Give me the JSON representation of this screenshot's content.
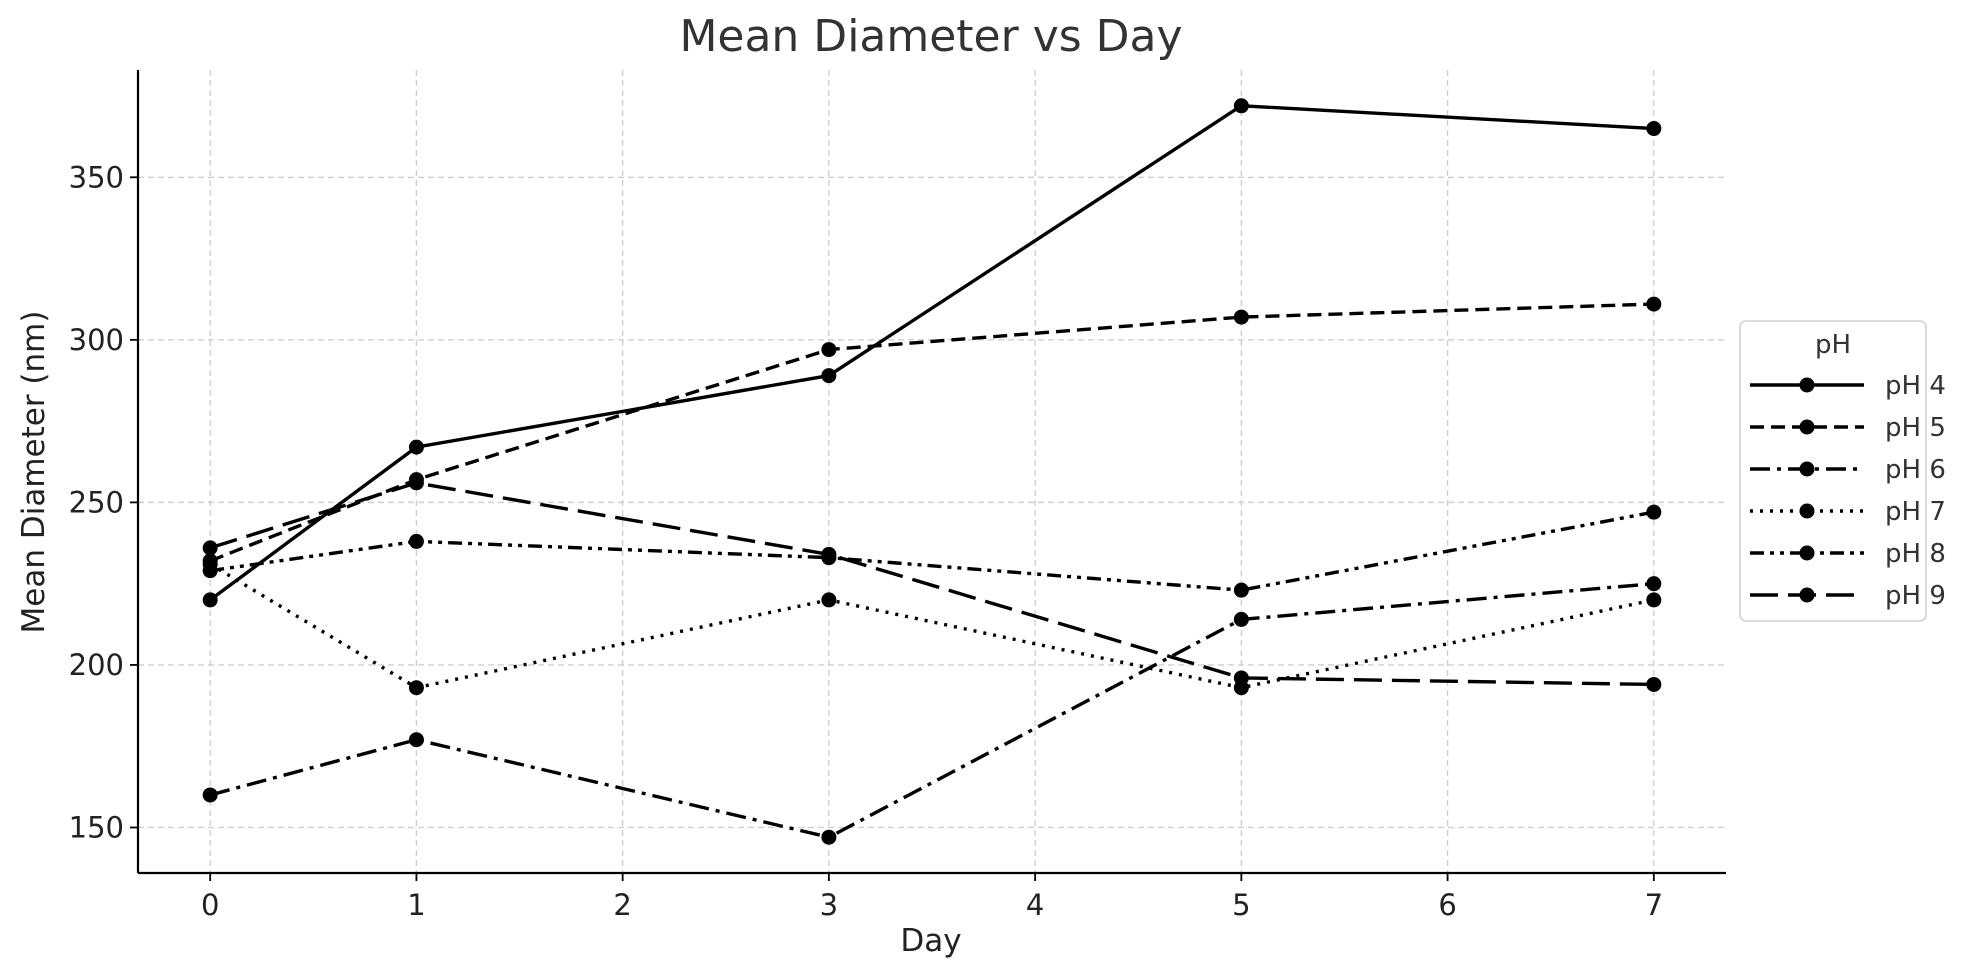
{
  "chart_data": {
    "type": "line",
    "title": "Mean Diameter vs Day",
    "xlabel": "Day",
    "ylabel": "Mean Diameter (nm)",
    "xlim": [
      -0.35,
      7.35
    ],
    "ylim": [
      136,
      383
    ],
    "xticks": [
      0,
      1,
      2,
      3,
      4,
      5,
      6,
      7
    ],
    "yticks": [
      150,
      200,
      250,
      300,
      350
    ],
    "grid": true,
    "x": [
      0,
      1,
      3,
      5,
      7
    ],
    "legend": {
      "title": "pH",
      "position": "center-right outside"
    },
    "series": [
      {
        "name": "pH 4",
        "style": "solid",
        "values": [
          220,
          267,
          289,
          372,
          365
        ]
      },
      {
        "name": "pH 5",
        "style": "dashed",
        "values": [
          232,
          257,
          297,
          307,
          311
        ]
      },
      {
        "name": "pH 6",
        "style": "dashdot",
        "values": [
          160,
          177,
          147,
          214,
          225
        ]
      },
      {
        "name": "pH 7",
        "style": "dotted",
        "values": [
          231,
          193,
          220,
          193,
          220
        ]
      },
      {
        "name": "pH 8",
        "style": "dashdotdot",
        "values": [
          229,
          238,
          233,
          223,
          247
        ]
      },
      {
        "name": "pH 9",
        "style": "longdash",
        "values": [
          236,
          256,
          234,
          196,
          194
        ]
      }
    ]
  }
}
